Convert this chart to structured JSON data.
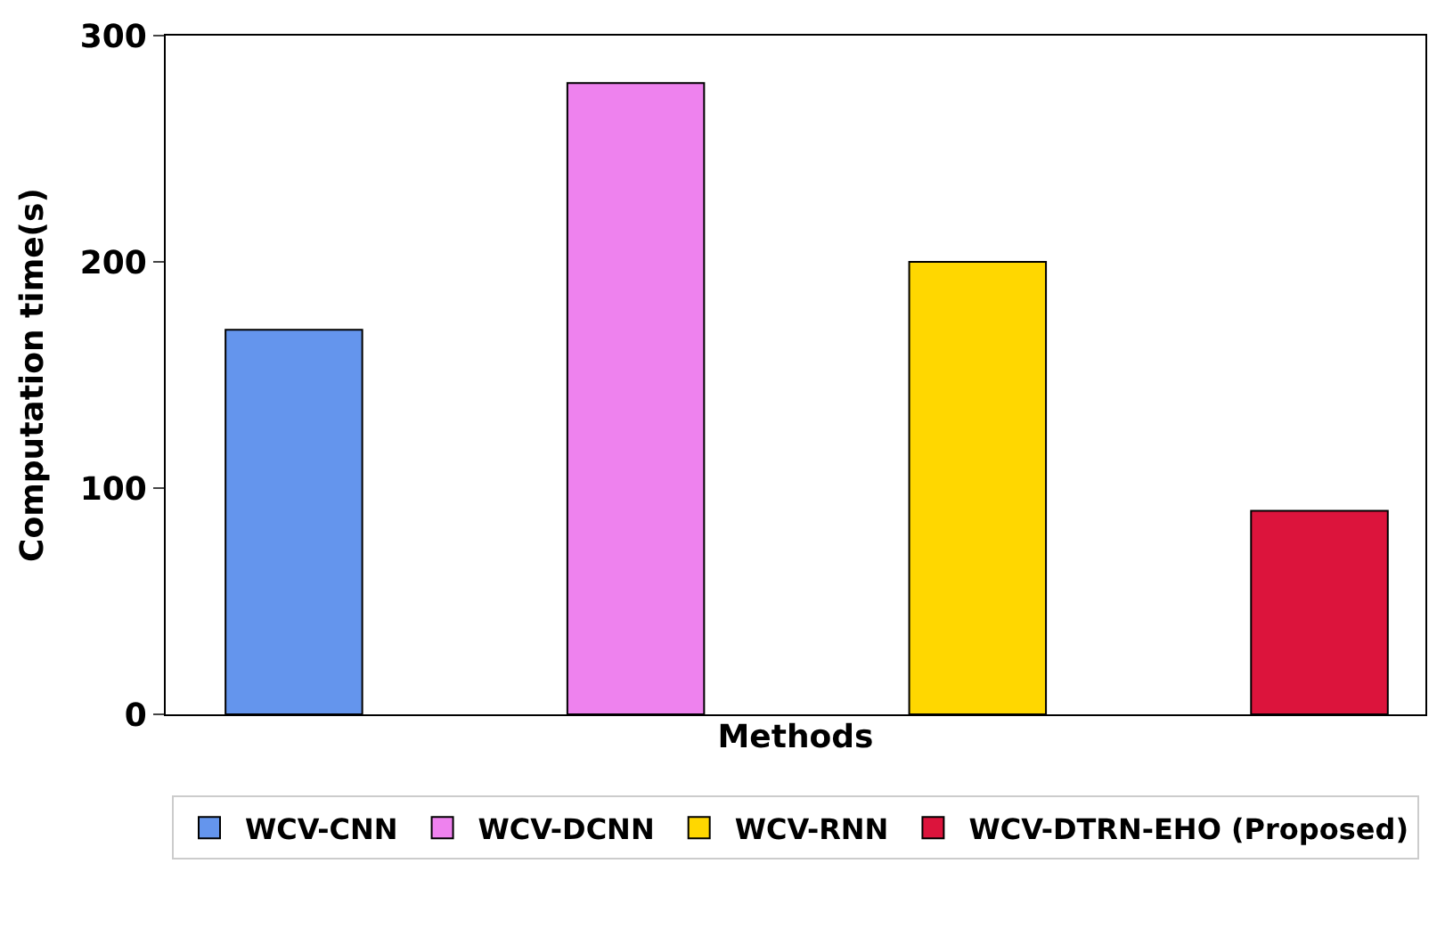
{
  "chart_data": {
    "type": "bar",
    "xlabel": "Methods",
    "ylabel": "Computation time(s)",
    "categories": [
      null,
      null,
      null,
      null
    ],
    "series": [
      {
        "name": "WCV-CNN",
        "color": "#6495ed",
        "values": [
          170,
          null,
          null,
          null
        ]
      },
      {
        "name": "WCV-DCNN",
        "color": "#ee82ee",
        "values": [
          null,
          279,
          null,
          null
        ]
      },
      {
        "name": "WCV-RNN",
        "color": "#ffd700",
        "values": [
          null,
          null,
          200,
          null
        ]
      },
      {
        "name": "WCV-DTRN-EHO (Proposed)",
        "color": "#dc143c",
        "values": [
          null,
          null,
          null,
          90
        ]
      }
    ],
    "ylim": [
      0,
      300
    ],
    "yticks": [
      0,
      100,
      200,
      300
    ],
    "legend": "bottom"
  }
}
